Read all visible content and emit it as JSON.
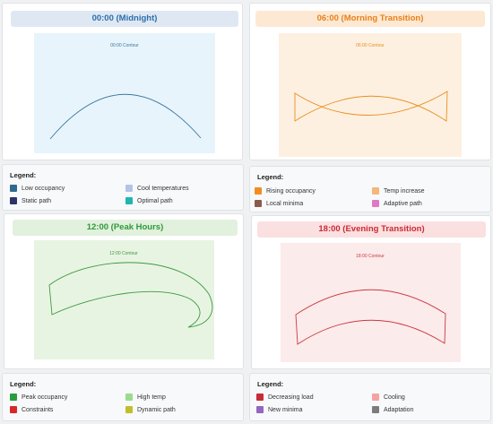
{
  "panels": [
    {
      "title": "00:00 (Midnight)",
      "title_color": "#2a6fae",
      "title_bg": "#dfe8f2",
      "plot_bg": "#e8f4fc",
      "contour_label": "00:00 Contour",
      "stroke": "#3c7a9f",
      "legend": {
        "title": "Legend:",
        "items": [
          {
            "label": "Low occupancy",
            "color": "#2f6a8f"
          },
          {
            "label": "Cool temperatures",
            "color": "#b3c3e6"
          },
          {
            "label": "Static path",
            "color": "#2b3467"
          },
          {
            "label": "Optimal path",
            "color": "#1fb5b0"
          }
        ]
      }
    },
    {
      "title": "06:00 (Morning Transition)",
      "title_color": "#e8801a",
      "title_bg": "#fde9d3",
      "plot_bg": "#fdf0e1",
      "contour_label": "06:00 Contour",
      "stroke": "#e8901f",
      "legend": {
        "title": "Legend:",
        "items": [
          {
            "label": "Rising occupancy",
            "color": "#f28d22"
          },
          {
            "label": "Temp increase",
            "color": "#f5b77a"
          },
          {
            "label": "Local minima",
            "color": "#8b5a4e"
          },
          {
            "label": "Adaptive path",
            "color": "#e079c4"
          }
        ]
      }
    },
    {
      "title": "12:00 (Peak Hours)",
      "title_color": "#2f9a3a",
      "title_bg": "#e1f1dd",
      "plot_bg": "#e8f4e2",
      "contour_label": "12:00 Contour",
      "stroke": "#3c9a44",
      "legend": {
        "title": "Legend:",
        "items": [
          {
            "label": "Peak occupancy",
            "color": "#2a9c3c"
          },
          {
            "label": "High temp",
            "color": "#9adc8e"
          },
          {
            "label": "Constraints",
            "color": "#d62a2a"
          },
          {
            "label": "Dynamic path",
            "color": "#c2bd2c"
          }
        ]
      }
    },
    {
      "title": "18:00 (Evening Transition)",
      "title_color": "#cc2a34",
      "title_bg": "#fbe0e1",
      "plot_bg": "#fcebeb",
      "contour_label": "18:00 Contour",
      "stroke": "#c93a42",
      "legend": {
        "title": "Legend:",
        "items": [
          {
            "label": "Decreasing load",
            "color": "#c62d37"
          },
          {
            "label": "Cooling",
            "color": "#f5a39f"
          },
          {
            "label": "New minima",
            "color": "#9268bf"
          },
          {
            "label": "Adaptation",
            "color": "#7c7c7c"
          }
        ]
      }
    }
  ]
}
